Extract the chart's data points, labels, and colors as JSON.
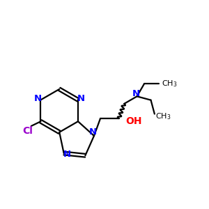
{
  "bg_color": "#ffffff",
  "bond_color": "#000000",
  "n_color": "#0000ff",
  "cl_color": "#9900cc",
  "oh_color": "#ff0000",
  "line_width": 1.6,
  "fig_size": [
    3.0,
    3.0
  ],
  "dpi": 100,
  "xlim": [
    0,
    10
  ],
  "ylim": [
    0,
    10
  ]
}
